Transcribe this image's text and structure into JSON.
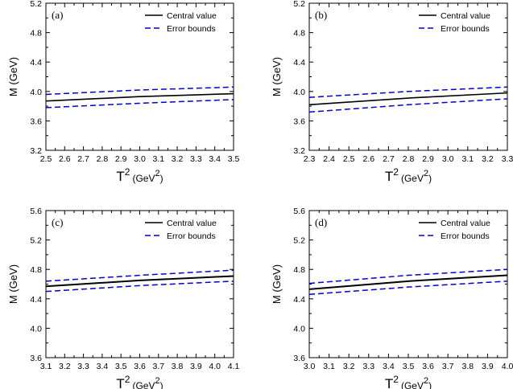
{
  "chart_data": [
    {
      "type": "line",
      "panel_label": "(a)",
      "xlabel_main": "T",
      "xlabel_sup": "2",
      "xlabel_unit": "(GeV",
      "xlabel_unit_sup": "2",
      "xlabel_unit_close": ")",
      "ylabel": "M (GeV)",
      "xlim": [
        2.5,
        3.5
      ],
      "ylim": [
        3.2,
        5.2
      ],
      "xticks": [
        "2.5",
        "2.6",
        "2.7",
        "2.8",
        "2.9",
        "3.0",
        "3.1",
        "3.2",
        "3.3",
        "3.4",
        "3.5"
      ],
      "yticks": [
        "3.2",
        "3.6",
        "4.0",
        "4.4",
        "4.8",
        "5.2"
      ],
      "legend": [
        "Central  value",
        "Error  bounds"
      ],
      "legend_position": "top-right",
      "series": [
        {
          "name": "Central  value",
          "style": "solid",
          "x": [
            2.5,
            3.0,
            3.5
          ],
          "y": [
            3.87,
            3.93,
            3.97
          ]
        },
        {
          "name": "Error  bounds",
          "style": "dashed",
          "x": [
            2.5,
            3.0,
            3.5
          ],
          "y": [
            3.96,
            4.02,
            4.06
          ]
        },
        {
          "name": "Error  bounds",
          "style": "dashed",
          "x": [
            2.5,
            3.0,
            3.5
          ],
          "y": [
            3.78,
            3.84,
            3.89
          ]
        }
      ]
    },
    {
      "type": "line",
      "panel_label": "(b)",
      "xlabel_main": "T",
      "xlabel_sup": "2",
      "xlabel_unit": "(GeV",
      "xlabel_unit_sup": "2",
      "xlabel_unit_close": ")",
      "ylabel": "M (GeV)",
      "xlim": [
        2.3,
        3.3
      ],
      "ylim": [
        3.2,
        5.2
      ],
      "xticks": [
        "2.3",
        "2.4",
        "2.5",
        "2.6",
        "2.7",
        "2.8",
        "2.9",
        "3.0",
        "3.1",
        "3.2",
        "3.3"
      ],
      "yticks": [
        "3.2",
        "3.6",
        "4.0",
        "4.4",
        "4.8",
        "5.2"
      ],
      "legend": [
        "Central  value",
        "Error  bounds"
      ],
      "legend_position": "top-right",
      "series": [
        {
          "name": "Central  value",
          "style": "solid",
          "x": [
            2.3,
            2.8,
            3.3
          ],
          "y": [
            3.82,
            3.91,
            3.98
          ]
        },
        {
          "name": "Error  bounds",
          "style": "dashed",
          "x": [
            2.3,
            2.8,
            3.3
          ],
          "y": [
            3.92,
            4.0,
            4.06
          ]
        },
        {
          "name": "Error  bounds",
          "style": "dashed",
          "x": [
            2.3,
            2.8,
            3.3
          ],
          "y": [
            3.72,
            3.82,
            3.9
          ]
        }
      ]
    },
    {
      "type": "line",
      "panel_label": "(c)",
      "xlabel_main": "T",
      "xlabel_sup": "2",
      "xlabel_unit": "(GeV",
      "xlabel_unit_sup": "2",
      "xlabel_unit_close": ")",
      "ylabel": "M (GeV)",
      "xlim": [
        3.1,
        4.1
      ],
      "ylim": [
        3.6,
        5.6
      ],
      "xticks": [
        "3.1",
        "3.2",
        "3.3",
        "3.4",
        "3.5",
        "3.6",
        "3.7",
        "3.8",
        "3.9",
        "4.0",
        "4.1"
      ],
      "yticks": [
        "3.6",
        "4.0",
        "4.4",
        "4.8",
        "5.2",
        "5.6"
      ],
      "legend": [
        "Central value",
        "Error  bounds"
      ],
      "legend_position": "top-right",
      "series": [
        {
          "name": "Central value",
          "style": "solid",
          "x": [
            3.1,
            3.6,
            4.1
          ],
          "y": [
            4.57,
            4.65,
            4.71
          ]
        },
        {
          "name": "Error  bounds",
          "style": "dashed",
          "x": [
            3.1,
            3.6,
            4.1
          ],
          "y": [
            4.64,
            4.72,
            4.79
          ]
        },
        {
          "name": "Error  bounds",
          "style": "dashed",
          "x": [
            3.1,
            3.6,
            4.1
          ],
          "y": [
            4.5,
            4.58,
            4.64
          ]
        }
      ]
    },
    {
      "type": "line",
      "panel_label": "(d)",
      "xlabel_main": "T",
      "xlabel_sup": "2",
      "xlabel_unit": "(GeV",
      "xlabel_unit_sup": "2",
      "xlabel_unit_close": ")",
      "ylabel": "M (GeV)",
      "xlim": [
        3.0,
        4.0
      ],
      "ylim": [
        3.6,
        5.6
      ],
      "xticks": [
        "3.0",
        "3.1",
        "3.2",
        "3.3",
        "3.4",
        "3.5",
        "3.6",
        "3.7",
        "3.8",
        "3.9",
        "4.0"
      ],
      "yticks": [
        "3.6",
        "4.0",
        "4.4",
        "4.8",
        "5.2",
        "5.6"
      ],
      "legend": [
        "Central value",
        "Error  bounds"
      ],
      "legend_position": "top-right",
      "series": [
        {
          "name": "Central value",
          "style": "solid",
          "x": [
            3.0,
            3.5,
            4.0
          ],
          "y": [
            4.53,
            4.64,
            4.72
          ]
        },
        {
          "name": "Error  bounds",
          "style": "dashed",
          "x": [
            3.0,
            3.5,
            4.0
          ],
          "y": [
            4.61,
            4.72,
            4.8
          ]
        },
        {
          "name": "Error  bounds",
          "style": "dashed",
          "x": [
            3.0,
            3.5,
            4.0
          ],
          "y": [
            4.46,
            4.56,
            4.64
          ]
        }
      ]
    }
  ],
  "colors": {
    "central": "#000000",
    "bounds": "#0000cc",
    "axis": "#000000"
  }
}
